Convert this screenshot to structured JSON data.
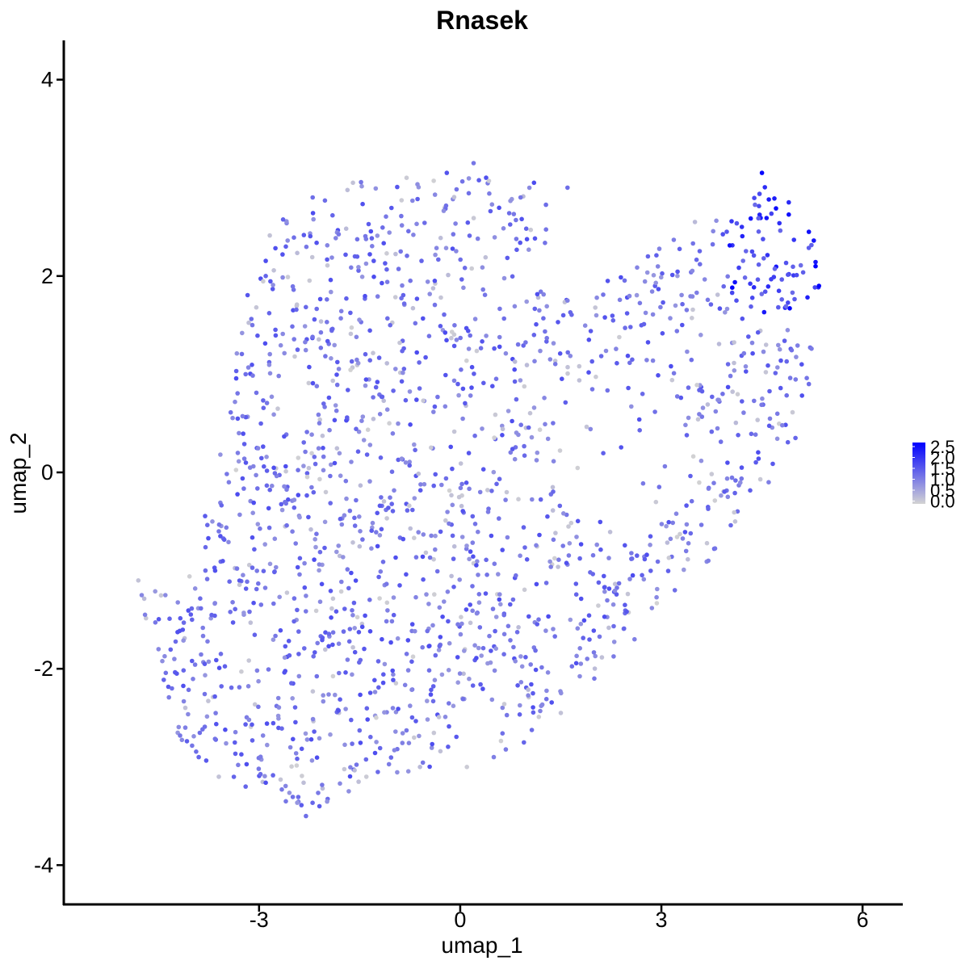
{
  "chart_data": {
    "type": "scatter",
    "title": "Rnasek",
    "xlabel": "umap_1",
    "ylabel": "umap_2",
    "xlim": [
      -5.9,
      6.6
    ],
    "ylim": [
      -4.4,
      4.4
    ],
    "x_ticks": [
      -3,
      0,
      3,
      6
    ],
    "x_tick_labels": [
      "-3",
      "0",
      "3",
      "6"
    ],
    "y_ticks": [
      -4,
      -2,
      0,
      2,
      4
    ],
    "y_tick_labels": [
      "-4",
      "-2",
      "0",
      "2",
      "4"
    ],
    "grid": false,
    "legend": {
      "placement": "right",
      "type": "colorbar",
      "min": 0.0,
      "max": 2.5,
      "labels": [
        "2.5",
        "2.0",
        "1.5",
        "1.0",
        "0.5",
        "0.0"
      ],
      "low_color": "#d3d3d3",
      "high_color": "#0000ff"
    },
    "colors": {
      "low": "#d3d3d3",
      "high": "#0000ff",
      "axis": "#000000"
    },
    "point_count": 1800,
    "points": [
      [
        -4.8,
        -1.1,
        0.2
      ],
      [
        -4.75,
        -1.25,
        0.9
      ],
      [
        -4.7,
        -1.45,
        1.0
      ],
      [
        -4.5,
        -1.8,
        0.9
      ],
      [
        -4.3,
        -2.2,
        1.2
      ],
      [
        -4.1,
        -2.6,
        1.0
      ],
      [
        -3.9,
        -2.9,
        1.3
      ],
      [
        -3.6,
        -3.1,
        0.2
      ],
      [
        -3.2,
        -3.2,
        1.3
      ],
      [
        -2.6,
        -3.35,
        1.1
      ],
      [
        -2.3,
        -3.5,
        1.2
      ],
      [
        -2.1,
        -3.4,
        1.4
      ],
      [
        -1.4,
        -3.1,
        0.1
      ],
      [
        -0.6,
        -3.0,
        0.3
      ],
      [
        0.1,
        -3.0,
        0.1
      ],
      [
        0.5,
        -2.9,
        1.0
      ],
      [
        0.95,
        -2.75,
        1.3
      ],
      [
        1.5,
        -2.45,
        0.2
      ],
      [
        2.0,
        -2.1,
        1.1
      ],
      [
        2.6,
        -1.7,
        1.0
      ],
      [
        3.2,
        -1.2,
        1.2
      ],
      [
        3.7,
        -0.9,
        1.0
      ],
      [
        4.1,
        -0.5,
        0.2
      ],
      [
        4.6,
        -0.1,
        1.0
      ],
      [
        5.0,
        0.35,
        1.3
      ],
      [
        5.2,
        0.9,
        1.2
      ],
      [
        5.35,
        1.9,
        2.6
      ],
      [
        5.3,
        2.1,
        2.5
      ],
      [
        5.2,
        2.45,
        2.3
      ],
      [
        4.9,
        2.75,
        2.0
      ],
      [
        4.5,
        3.05,
        2.4
      ],
      [
        4.2,
        2.5,
        1.9
      ],
      [
        3.5,
        2.55,
        0.3
      ],
      [
        2.8,
        2.2,
        1.3
      ],
      [
        2.2,
        1.95,
        1.5
      ],
      [
        1.6,
        1.75,
        1.0
      ],
      [
        1.1,
        1.4,
        1.3
      ],
      [
        1.1,
        2.95,
        1.6
      ],
      [
        1.6,
        2.9,
        1.2
      ],
      [
        0.9,
        2.8,
        1.1
      ],
      [
        0.2,
        3.15,
        1.1
      ],
      [
        -0.2,
        3.05,
        1.5
      ],
      [
        -0.8,
        3.0,
        0.1
      ],
      [
        -1.6,
        2.95,
        0.2
      ],
      [
        -2.2,
        2.8,
        1.2
      ],
      [
        -2.6,
        2.3,
        1.4
      ],
      [
        -2.9,
        2.0,
        1.3
      ],
      [
        -3.1,
        1.5,
        1.1
      ],
      [
        -3.2,
        1.0,
        1.2
      ],
      [
        -3.3,
        0.4,
        0.9
      ],
      [
        -3.45,
        -0.1,
        1.0
      ],
      [
        -3.6,
        -0.6,
        1.1
      ],
      [
        -3.8,
        -1.0,
        1.2
      ],
      [
        -4.0,
        -1.5,
        1.3
      ]
    ]
  }
}
